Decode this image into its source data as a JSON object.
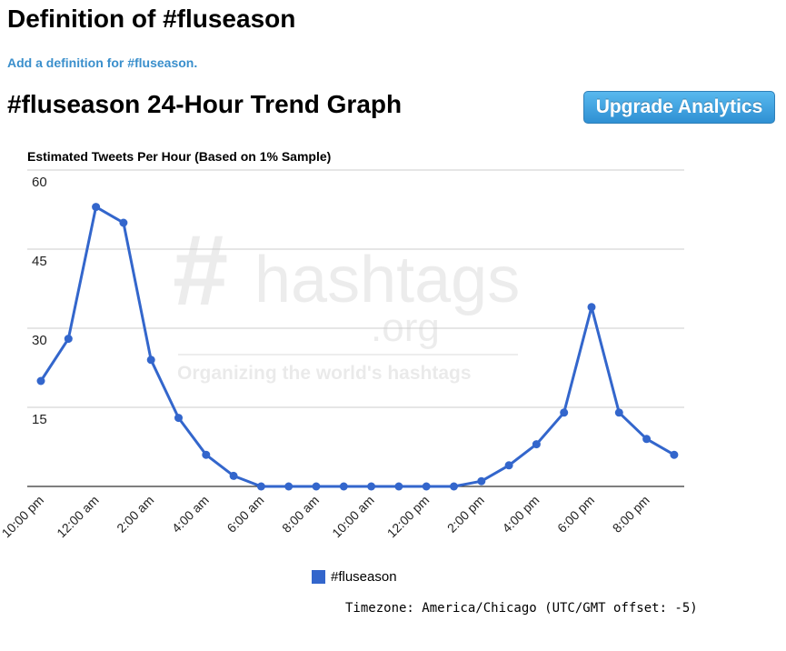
{
  "page": {
    "title": "Definition of #fluseason",
    "add_definition_link": "Add a definition for #fluseason.",
    "trend_title": "#fluseason 24-Hour Trend Graph",
    "upgrade_button": "Upgrade Analytics",
    "timezone": "Timezone: America/Chicago (UTC/GMT offset: -5)"
  },
  "watermark": {
    "logo": "#hashtags",
    "domain": ".org",
    "tagline": "Organizing the world's hashtags"
  },
  "colors": {
    "series": "#3366cc",
    "link": "#3a8fcc",
    "button": "#2f90d3",
    "grid": "#cccccc"
  },
  "chart_data": {
    "type": "line",
    "title": "Estimated Tweets Per Hour (Based on 1% Sample)",
    "xlabel": "",
    "ylabel": "",
    "ylim": [
      0,
      60
    ],
    "y_ticks": [
      15,
      30,
      45,
      60
    ],
    "grid": true,
    "legend_position": "bottom",
    "x_tick_labels": [
      "10:00 pm",
      "12:00 am",
      "2:00 am",
      "4:00 am",
      "6:00 am",
      "8:00 am",
      "10:00 am",
      "12:00 pm",
      "2:00 pm",
      "4:00 pm",
      "6:00 pm",
      "8:00 pm"
    ],
    "x": [
      "10:00 pm",
      "11:00 pm",
      "12:00 am",
      "1:00 am",
      "2:00 am",
      "3:00 am",
      "4:00 am",
      "5:00 am",
      "6:00 am",
      "7:00 am",
      "8:00 am",
      "9:00 am",
      "10:00 am",
      "11:00 am",
      "12:00 pm",
      "1:00 pm",
      "2:00 pm",
      "3:00 pm",
      "4:00 pm",
      "5:00 pm",
      "6:00 pm",
      "7:00 pm",
      "8:00 pm",
      "9:00 pm"
    ],
    "series": [
      {
        "name": "#fluseason",
        "values": [
          20,
          28,
          53,
          50,
          24,
          13,
          6,
          2,
          0,
          0,
          0,
          0,
          0,
          0,
          0,
          0,
          1,
          4,
          8,
          14,
          34,
          14,
          9,
          6
        ]
      }
    ]
  }
}
